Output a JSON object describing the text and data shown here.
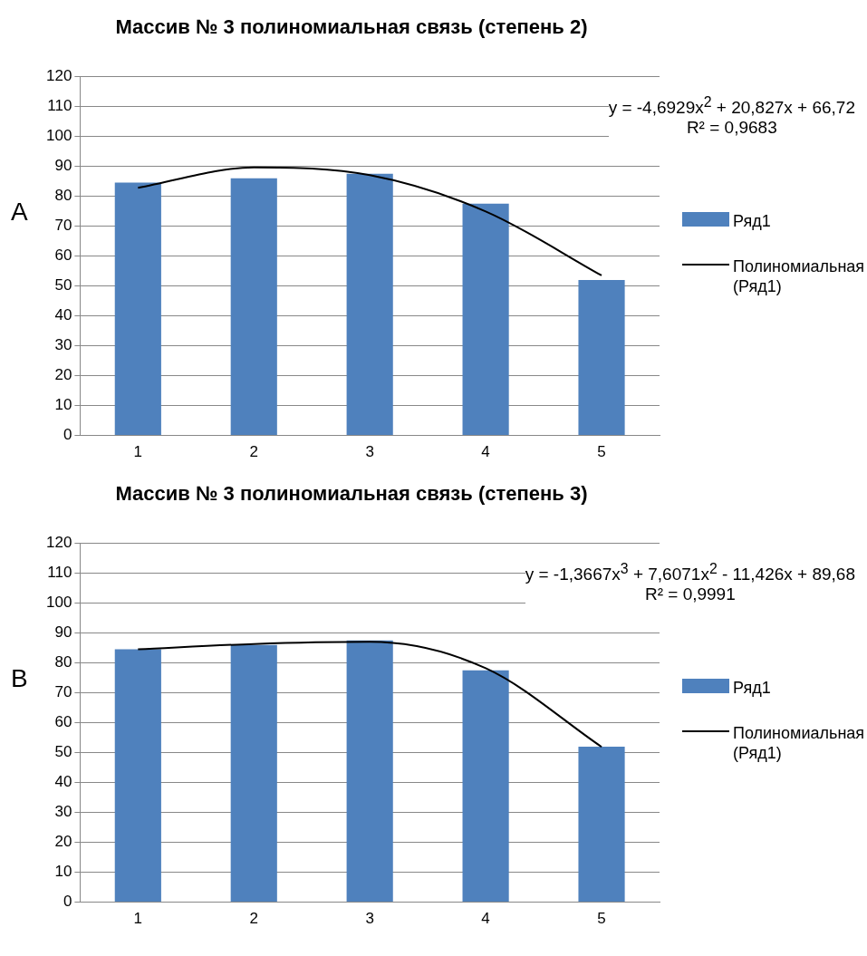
{
  "chart_data": [
    {
      "type": "bar",
      "title": "Массив № 3 полиномиальная связь (степень 2)",
      "categories": [
        "1",
        "2",
        "3",
        "4",
        "5"
      ],
      "series": [
        {
          "name": "Ряд1",
          "color": "#4f81bd",
          "values": [
            84.5,
            86,
            87.5,
            77.5,
            52
          ]
        },
        {
          "name": "Полиномиальная (Ряд1)",
          "type": "line",
          "color": "#000000",
          "values": [
            82.8,
            89.6,
            87,
            74.9,
            53.5
          ]
        }
      ],
      "ylim": [
        0,
        120
      ],
      "yticks": [
        0,
        10,
        20,
        30,
        40,
        50,
        60,
        70,
        80,
        90,
        100,
        110,
        120
      ],
      "grid": "y",
      "legend": "right",
      "marker": "none",
      "annotations": [
        "A",
        "y = -4,6929x$^{2}$ + 20,827x + 66,72",
        "R² = 0,9683"
      ]
    },
    {
      "type": "bar",
      "title": "Массив № 3 полиномиальная связь (степень 3)",
      "categories": [
        "1",
        "2",
        "3",
        "4",
        "5"
      ],
      "series": [
        {
          "name": "Ряд1",
          "color": "#4f81bd",
          "values": [
            84.5,
            86,
            87.5,
            77.5,
            52
          ]
        },
        {
          "name": "Полиномиальная (Ряд1)",
          "type": "line",
          "color": "#000000",
          "values": [
            84.5,
            86.3,
            87,
            78.2,
            51.9
          ]
        }
      ],
      "ylim": [
        0,
        120
      ],
      "yticks": [
        0,
        10,
        20,
        30,
        40,
        50,
        60,
        70,
        80,
        90,
        100,
        110,
        120
      ],
      "grid": "y",
      "legend": "right",
      "marker": "none",
      "annotations": [
        "B",
        "y = -1,3667x$^{3}$ + 7,6071x$^{2}$ - 11,426x + 89,68",
        "R² = 0,9991"
      ]
    }
  ]
}
